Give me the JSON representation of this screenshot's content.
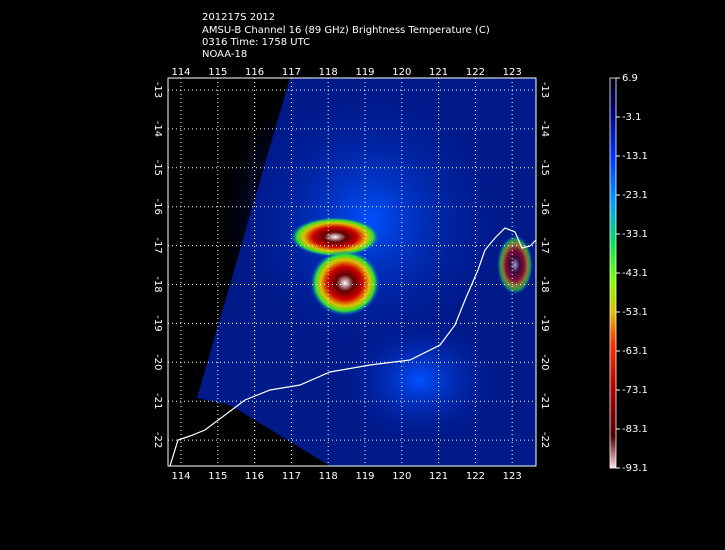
{
  "header": {
    "lines": [
      "201217S 2012",
      "AMSU-B Channel 16 (89 GHz) Brightness Temperature (C)",
      "0316 Time: 1758 UTC",
      "NOAA-18"
    ]
  },
  "map": {
    "longitudes": [
      "114",
      "115",
      "116",
      "117",
      "118",
      "119",
      "120",
      "121",
      "122",
      "123"
    ],
    "latitudes": [
      "-13",
      "-14",
      "-15",
      "-16",
      "-17",
      "-18",
      "-19",
      "-20",
      "-21",
      "-22"
    ]
  },
  "colorbar": {
    "labels": [
      "6.9",
      "-3.1",
      "-13.1",
      "-23.1",
      "-33.1",
      "-43.1",
      "-53.1",
      "-63.1",
      "-73.1",
      "-83.1",
      "-93.1"
    ]
  }
}
